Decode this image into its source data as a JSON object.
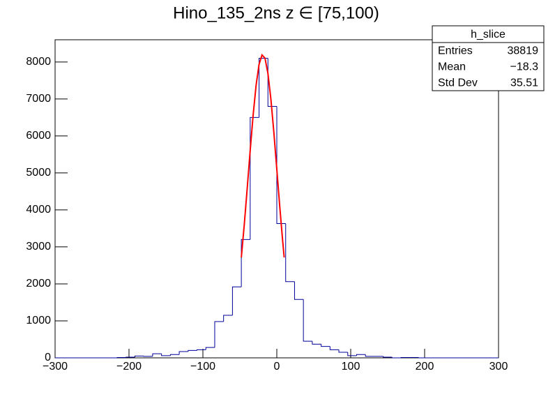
{
  "chart_data": {
    "type": "histogram",
    "title": "Hino_135_2ns z  ∈ [75,100)",
    "bins": [
      -300,
      -288,
      -276,
      -264,
      -252,
      -240,
      -228,
      -216,
      -204,
      -192,
      -180,
      -168,
      -156,
      -144,
      -132,
      -120,
      -108,
      -96,
      -84,
      -72,
      -60,
      -48,
      -36,
      -24,
      -12,
      0,
      12,
      24,
      36,
      48,
      60,
      72,
      84,
      96,
      108,
      120,
      132,
      144,
      156,
      168,
      180,
      192,
      204,
      216,
      228,
      240,
      252,
      264,
      276,
      288,
      300
    ],
    "values": [
      0,
      0,
      0,
      0,
      0,
      0,
      0,
      10,
      20,
      50,
      40,
      110,
      60,
      90,
      170,
      200,
      220,
      280,
      980,
      1150,
      1920,
      3200,
      6500,
      8100,
      6800,
      3630,
      2060,
      1580,
      450,
      370,
      310,
      220,
      150,
      60,
      90,
      40,
      40,
      20,
      0,
      10,
      10,
      0,
      0,
      0,
      0,
      0,
      0,
      0,
      0,
      0
    ],
    "color": "#000099",
    "fit": {
      "color": "#ff0000",
      "x": [
        -48,
        -44,
        -40,
        -36,
        -32,
        -28,
        -24,
        -20,
        -16,
        -12,
        -8,
        -4,
        0,
        4,
        8,
        10
      ],
      "values": [
        2714,
        3605,
        4592,
        5609,
        6566,
        7372,
        7935,
        8189,
        8104,
        7688,
        6994,
        6100,
        5100,
        4090,
        3144,
        2714
      ]
    },
    "xlim": [
      -300,
      300
    ],
    "xticks": [
      {
        "value": -300,
        "label": "−300"
      },
      {
        "value": -200,
        "label": "−200"
      },
      {
        "value": -100,
        "label": "−100"
      },
      0,
      100,
      200,
      300
    ],
    "ylim": [
      0,
      8600
    ],
    "yticks": [
      0,
      1000,
      2000,
      3000,
      4000,
      5000,
      6000,
      7000,
      8000
    ],
    "stats": {
      "title": "h_slice",
      "rows": [
        {
          "label": "Entries",
          "value": "38819"
        },
        {
          "label": "Mean",
          "value": "−18.3"
        },
        {
          "label": "Std Dev",
          "value": "35.51"
        }
      ]
    }
  }
}
